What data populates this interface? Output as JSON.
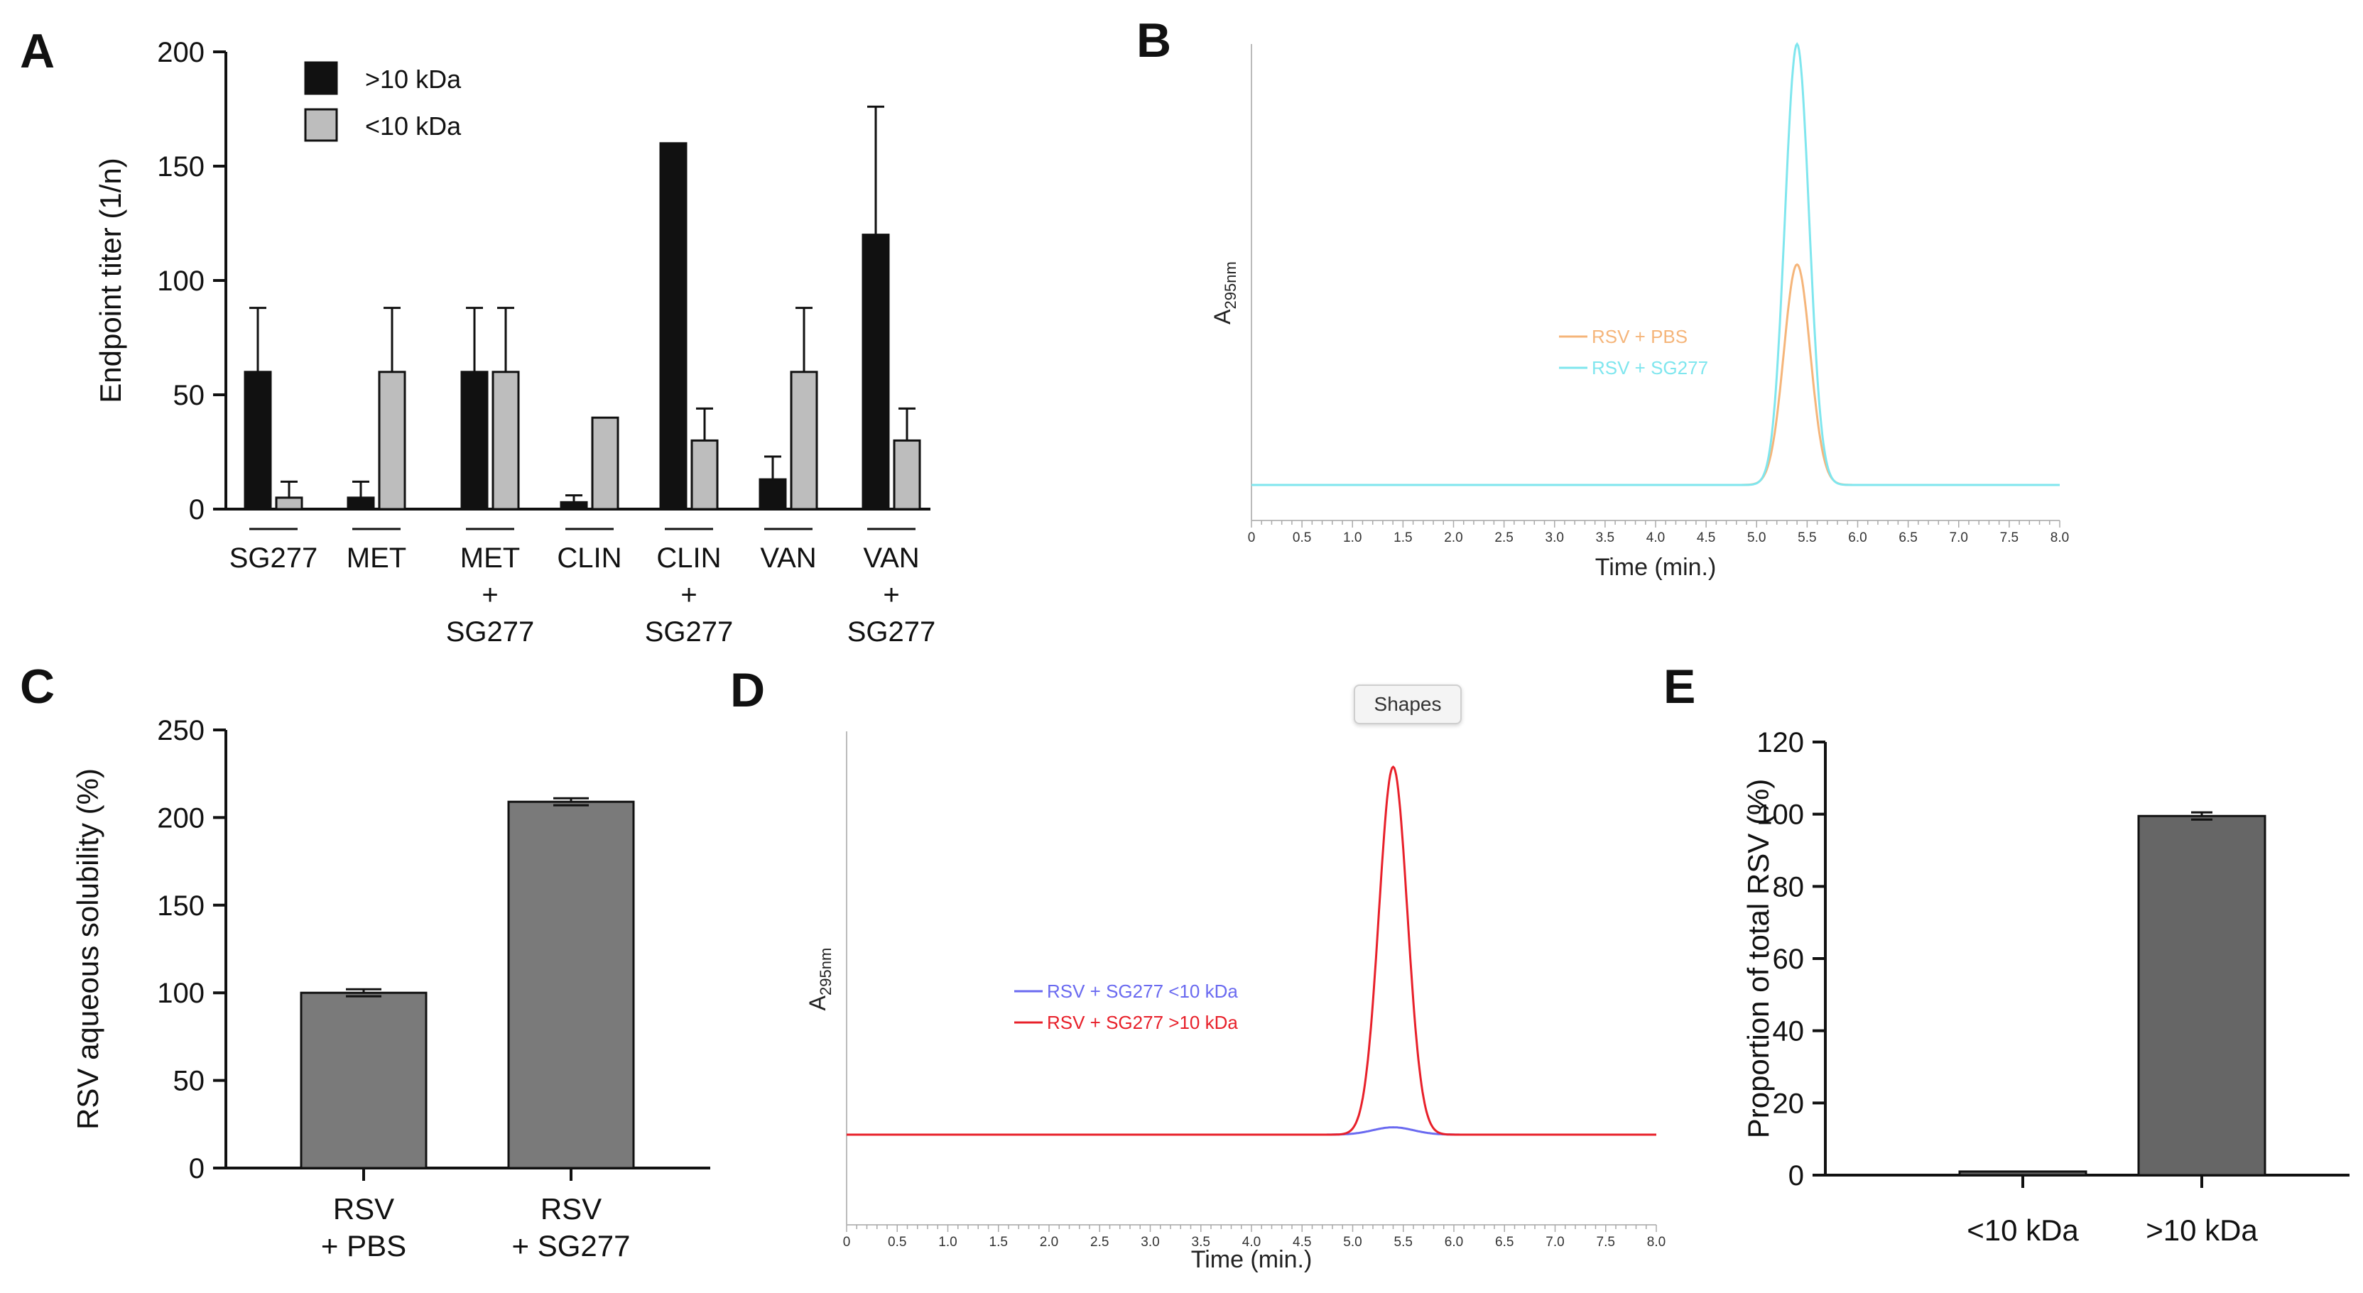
{
  "chart_data": [
    {
      "panel": "A",
      "type": "bar",
      "ylabel": "Endpoint titer (1/n)",
      "ylim": [
        0,
        200
      ],
      "yticks": [
        0,
        50,
        100,
        150,
        200
      ],
      "categories": [
        [
          "SG277"
        ],
        [
          "MET"
        ],
        [
          "MET",
          "+",
          "SG277"
        ],
        [
          "CLIN"
        ],
        [
          "CLIN",
          "+",
          "SG277"
        ],
        [
          "VAN"
        ],
        [
          "VAN",
          "+",
          "SG277"
        ]
      ],
      "series": [
        {
          "name": ">10 kDa",
          "color": "#111111",
          "values": [
            60,
            5,
            60,
            3,
            160,
            13,
            120
          ],
          "errors": [
            28,
            7,
            28,
            3,
            0,
            10,
            56
          ]
        },
        {
          "name": "<10 kDa",
          "color": "#bdbdbd",
          "values": [
            5,
            60,
            60,
            40,
            30,
            60,
            30
          ],
          "errors": [
            7,
            28,
            28,
            0,
            14,
            28,
            14
          ]
        }
      ],
      "legend": "top-left"
    },
    {
      "panel": "B",
      "type": "line",
      "ylabel": "A",
      "ylabel_sub": "295nm",
      "xlabel": "Time (min.)",
      "xlim": [
        0,
        8
      ],
      "xticks": [
        "0",
        "0.5",
        "1.0",
        "1.5",
        "2.0",
        "2.5",
        "3.0",
        "3.5",
        "4.0",
        "4.5",
        "5.0",
        "5.5",
        "6.0",
        "6.5",
        "7.0",
        "7.5",
        "8.0"
      ],
      "series": [
        {
          "name": "RSV + PBS",
          "color": "#f5b57a",
          "baseline": 0,
          "peak_time": 5.4,
          "peak_height": 0.5,
          "width": 0.13
        },
        {
          "name": "RSV + SG277",
          "color": "#7fe6ee",
          "baseline": 0,
          "peak_time": 5.4,
          "peak_height": 1.0,
          "width": 0.12
        }
      ],
      "legend": "center-right"
    },
    {
      "panel": "C",
      "type": "bar",
      "ylabel": "RSV aqueous solubility (%)",
      "ylim": [
        0,
        250
      ],
      "yticks": [
        0,
        50,
        100,
        150,
        200,
        250
      ],
      "categories": [
        [
          "RSV",
          "+ PBS"
        ],
        [
          "RSV",
          "+ SG277"
        ]
      ],
      "values": [
        100,
        209
      ],
      "errors": [
        2,
        2
      ],
      "color": "#7a7a7a"
    },
    {
      "panel": "D",
      "type": "line",
      "ylabel": "A",
      "ylabel_sub": "295nm",
      "xlabel": "Time (min.)",
      "xlim": [
        0,
        8
      ],
      "xticks": [
        "0",
        "0.5",
        "1.0",
        "1.5",
        "2.0",
        "2.5",
        "3.0",
        "3.5",
        "4.0",
        "4.5",
        "5.0",
        "5.5",
        "6.0",
        "6.5",
        "7.0",
        "7.5",
        "8.0"
      ],
      "series": [
        {
          "name": "RSV + SG277 <10 kDa",
          "color": "#6a6af0",
          "baseline": 0,
          "peak_time": 5.4,
          "peak_height": 0.02,
          "width": 0.2
        },
        {
          "name": "RSV + SG277 >10 kDa",
          "color": "#e8202a",
          "baseline": 0,
          "peak_time": 5.4,
          "peak_height": 1.0,
          "width": 0.14
        }
      ],
      "legend": "center-left"
    },
    {
      "panel": "E",
      "type": "bar",
      "ylabel": "Proportion of total RSV (%)",
      "ylim": [
        0,
        120
      ],
      "yticks": [
        0,
        20,
        40,
        60,
        80,
        100,
        120
      ],
      "categories": [
        [
          "<10 kDa"
        ],
        [
          ">10 kDa"
        ]
      ],
      "values": [
        1,
        99.5
      ],
      "errors": [
        0,
        1
      ],
      "color": "#666666"
    }
  ],
  "tooltip": "Shapes",
  "panel_letters": [
    "A",
    "B",
    "C",
    "D",
    "E"
  ]
}
